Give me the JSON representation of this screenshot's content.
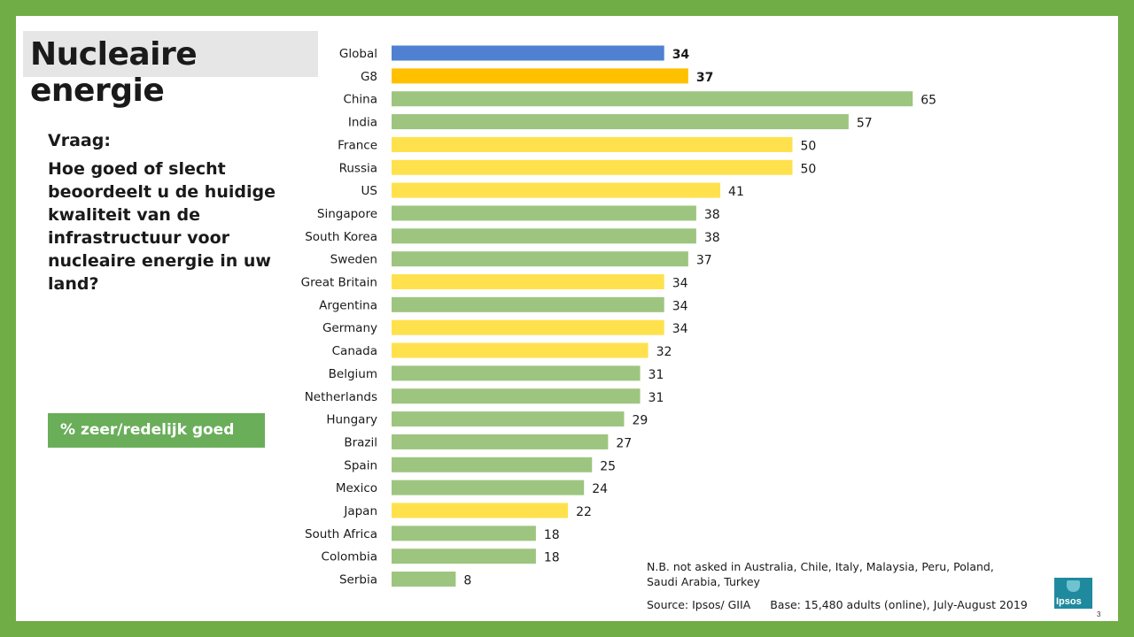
{
  "title": "Nucleaire energie",
  "question": {
    "label": "Vraag:",
    "text": "Hoe goed of slecht beoordeelt u de huidige kwaliteit van de infrastructuur voor nucleaire energie in uw land?"
  },
  "metric_label": "% zeer/redelijk goed",
  "note": "N.B. not asked in Australia, Chile, Italy, Malaysia, Peru, Poland, Saudi Arabia, Turkey",
  "source": "Source: Ipsos/ GIIA",
  "base": "Base: 15,480 adults (online), July-August 2019",
  "logo_text": "Ipsos",
  "page_number": "3",
  "colors": {
    "global": "#4f81d0",
    "g8_total": "#ffc000",
    "g8_member": "#ffe14d",
    "other": "#9dc57f"
  },
  "chart_data": {
    "type": "bar",
    "orientation": "horizontal",
    "categories": [
      "Global",
      "G8",
      "China",
      "India",
      "France",
      "Russia",
      "US",
      "Singapore",
      "South Korea",
      "Sweden",
      "Great Britain",
      "Argentina",
      "Germany",
      "Canada",
      "Belgium",
      "Netherlands",
      "Hungary",
      "Brazil",
      "Spain",
      "Mexico",
      "Japan",
      "South Africa",
      "Colombia",
      "Serbia"
    ],
    "values": [
      34,
      37,
      65,
      57,
      50,
      50,
      41,
      38,
      38,
      37,
      34,
      34,
      34,
      32,
      31,
      31,
      29,
      27,
      25,
      24,
      22,
      18,
      18,
      8
    ],
    "groups": [
      "global",
      "g8_total",
      "other",
      "other",
      "g8_member",
      "g8_member",
      "g8_member",
      "other",
      "other",
      "other",
      "g8_member",
      "other",
      "g8_member",
      "g8_member",
      "other",
      "other",
      "other",
      "other",
      "other",
      "other",
      "g8_member",
      "other",
      "other",
      "other"
    ],
    "bold_labels": [
      "Global",
      "G8"
    ],
    "xlim": [
      0,
      70
    ],
    "grid": false,
    "legend": "none"
  }
}
